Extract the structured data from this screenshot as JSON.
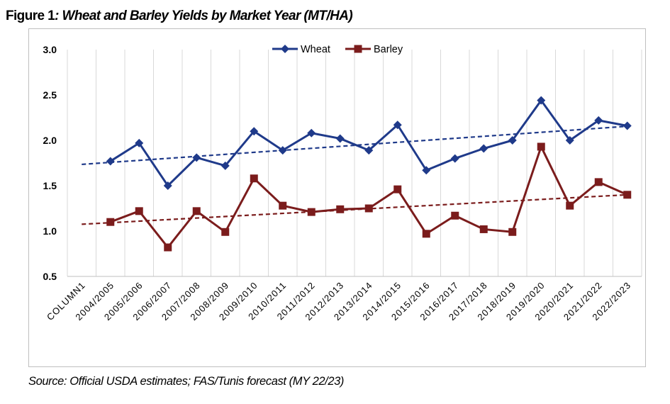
{
  "figure": {
    "label": "Figure 1",
    "title_sep": ": ",
    "title": "Wheat and Barley Yields by Market Year (MT/HA)"
  },
  "source_note": "Source: Official USDA estimates; FAS/Tunis forecast (MY 22/23)",
  "chart_data": {
    "type": "line",
    "categories": [
      "COLUMN1",
      "2004/2005",
      "2005/2006",
      "2006/2007",
      "2007/2008",
      "2008/2009",
      "2009/2010",
      "2010/2011",
      "2011/2012",
      "2012/2013",
      "2013/2014",
      "2014/2015",
      "2015/2016",
      "2016/2017",
      "2017/2018",
      "2018/2019",
      "2019/2020",
      "2020/2021",
      "2021/2022",
      "2022/2023"
    ],
    "series": [
      {
        "name": "Wheat",
        "color": "#1f3a8a",
        "marker": "diamond",
        "values": [
          null,
          1.77,
          1.97,
          1.5,
          1.81,
          1.72,
          2.1,
          1.89,
          2.08,
          2.02,
          1.89,
          2.17,
          1.67,
          1.8,
          1.91,
          2.0,
          2.44,
          2.0,
          2.22,
          2.16
        ]
      },
      {
        "name": "Barley",
        "color": "#7b1c1c",
        "marker": "square",
        "values": [
          null,
          1.1,
          1.22,
          0.82,
          1.22,
          0.99,
          1.58,
          1.28,
          1.21,
          1.24,
          1.25,
          1.46,
          0.97,
          1.17,
          1.02,
          0.99,
          1.93,
          1.28,
          1.54,
          1.4
        ]
      }
    ],
    "trendlines": [
      {
        "series": "Wheat",
        "style": "dashed",
        "color": "#1f3a8a",
        "start": 1.735,
        "end": 2.155
      },
      {
        "series": "Barley",
        "style": "dashed",
        "color": "#7b1c1c",
        "start": 1.075,
        "end": 1.4
      }
    ],
    "y_ticks": [
      "0.5",
      "1.0",
      "1.5",
      "2.0",
      "2.5",
      "3.0"
    ],
    "ylim": [
      0.5,
      3.0
    ],
    "grid": "vertical",
    "legend": "top-center"
  }
}
